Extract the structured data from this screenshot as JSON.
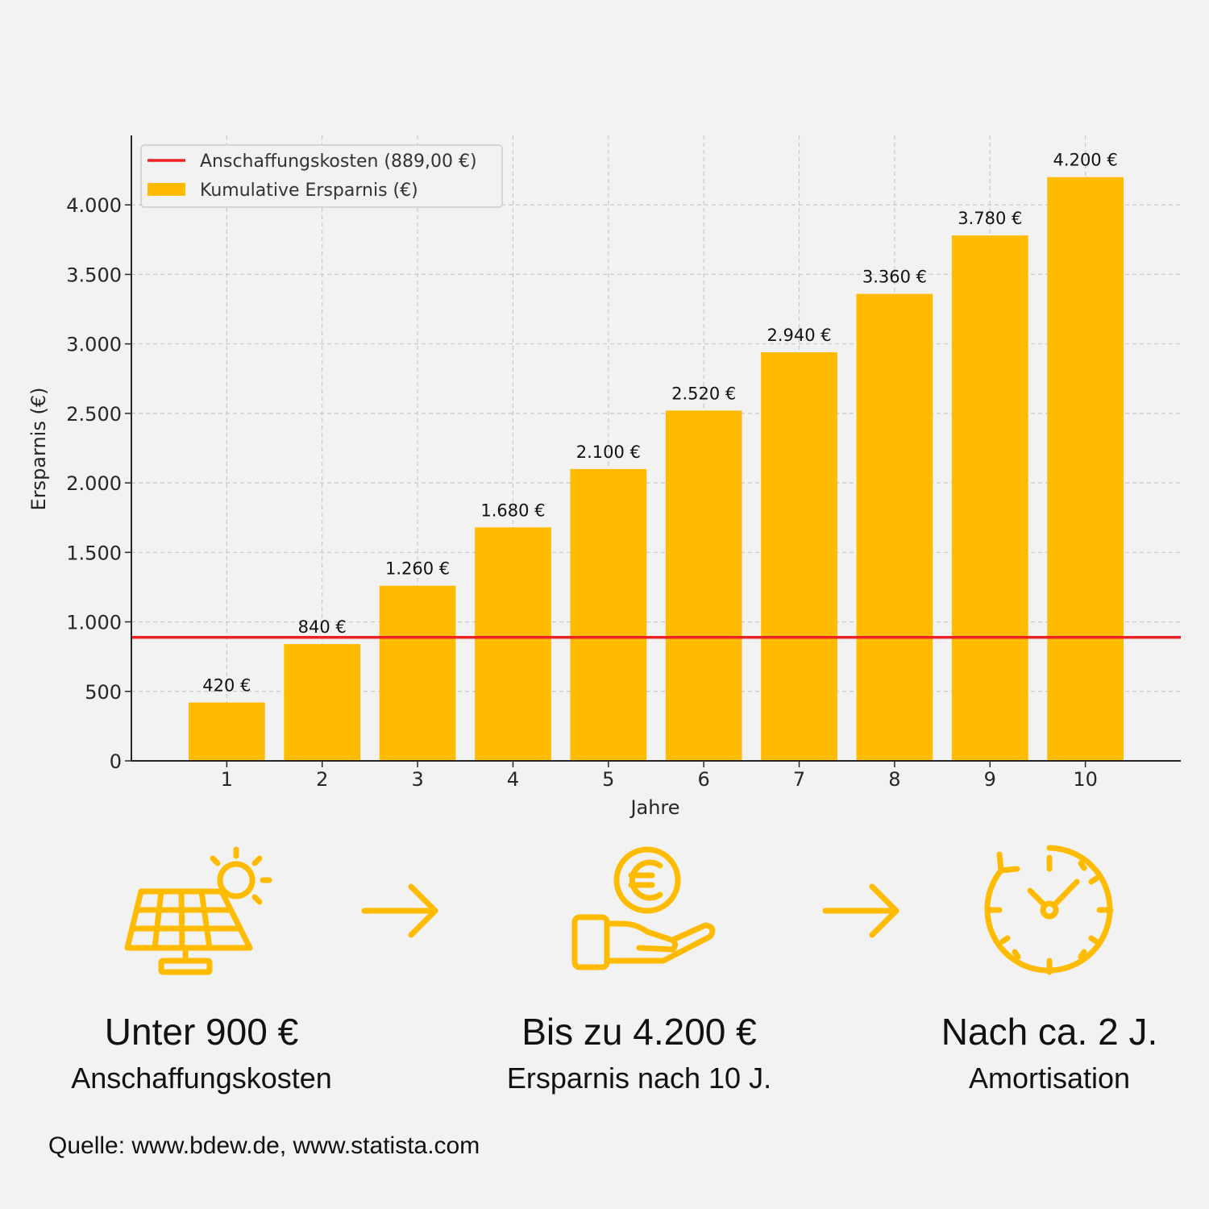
{
  "colors": {
    "bar": "#ffbb00",
    "line": "#ee2222",
    "icon": "#ffbb00",
    "background": "#f2f2f2"
  },
  "chart_data": {
    "type": "bar",
    "categories": [
      "1",
      "2",
      "3",
      "4",
      "5",
      "6",
      "7",
      "8",
      "9",
      "10"
    ],
    "values": [
      420,
      840,
      1260,
      1680,
      2100,
      2520,
      2940,
      3360,
      3780,
      4200
    ],
    "value_labels": [
      "420 €",
      "840 €",
      "1.260 €",
      "1.680 €",
      "2.100 €",
      "2.520 €",
      "2.940 €",
      "3.360 €",
      "3.780 €",
      "4.200 €"
    ],
    "reference_line": {
      "value": 889,
      "name": "Anschaffungskosten (889,00 €)"
    },
    "series_name": "Kumulative Ersparnis (€)",
    "xlabel": "Jahre",
    "ylabel": "Ersparnis (€)",
    "ylim": [
      0,
      4500
    ],
    "xlim": [
      0,
      11
    ],
    "yticks": [
      0,
      500,
      1000,
      1500,
      2000,
      2500,
      3000,
      3500,
      4000
    ],
    "ytick_labels": [
      "0",
      "500",
      "1.000",
      "1.500",
      "2.000",
      "2.500",
      "3.000",
      "3.500",
      "4.000"
    ],
    "grid": true,
    "legend_position": "top-left"
  },
  "info": [
    {
      "icon": "solar-panel-icon",
      "headline": "Unter 900 €",
      "sub": "Anschaffungskosten"
    },
    {
      "icon": "hand-euro-coin-icon",
      "headline": "Bis zu 4.200 €",
      "sub": "Ersparnis nach 10 J."
    },
    {
      "icon": "clock-icon",
      "headline": "Nach ca. 2 J.",
      "sub": "Amortisation"
    }
  ],
  "source": "Quelle: www.bdew.de, www.statista.com"
}
